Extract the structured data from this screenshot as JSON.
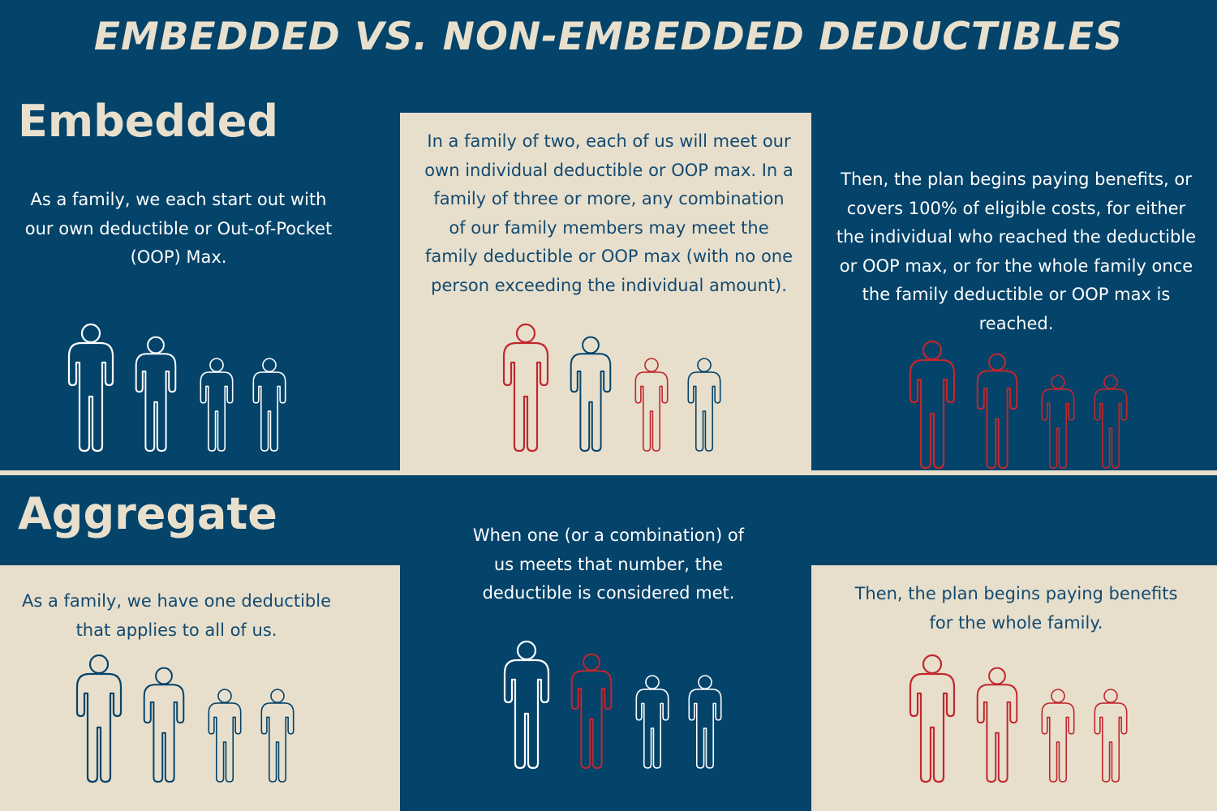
{
  "title": "EMBEDDED VS. NON-EMBEDDED DEDUCTIBLES",
  "colors": {
    "navy": "#04436a",
    "cream": "#e7dfcc",
    "red": "#c1272d",
    "white": "#ffffff",
    "text_dark": "#134a70"
  },
  "embedded": {
    "heading": "Embedded",
    "step1": "As a family, we each start out with our own deductible or Out-of-Pocket (OOP) Max.",
    "step2": "In a family of two, each of us will meet our own individual deductible or OOP max. In a family of three or more, any combination of our family members may meet the family deductible or OOP max (with no one person exceeding the individual amount).",
    "step3": "Then, the plan begins paying benefits, or covers 100% of eligible costs, for either the individual who reached the deductible or OOP max, or for the whole family once the family deductible or OOP max is reached."
  },
  "aggregate": {
    "heading": "Aggregate",
    "step1": "As a family, we have one deductible that applies to all of us.",
    "step2": "When one (or a combination) of us meets that number, the deductible is considered met.",
    "step3": "Then, the plan begins paying benefits for the whole family."
  },
  "figures": {
    "embedded_step1": [
      "white",
      "white",
      "white",
      "white"
    ],
    "embedded_step2": [
      "red",
      "navy",
      "red",
      "navy"
    ],
    "embedded_step3": [
      "red",
      "red",
      "red",
      "red"
    ],
    "aggregate_step1": [
      "navy",
      "navy",
      "navy",
      "navy"
    ],
    "aggregate_step2": [
      "white",
      "red",
      "white",
      "white"
    ],
    "aggregate_step3": [
      "red",
      "red",
      "red",
      "red"
    ]
  }
}
